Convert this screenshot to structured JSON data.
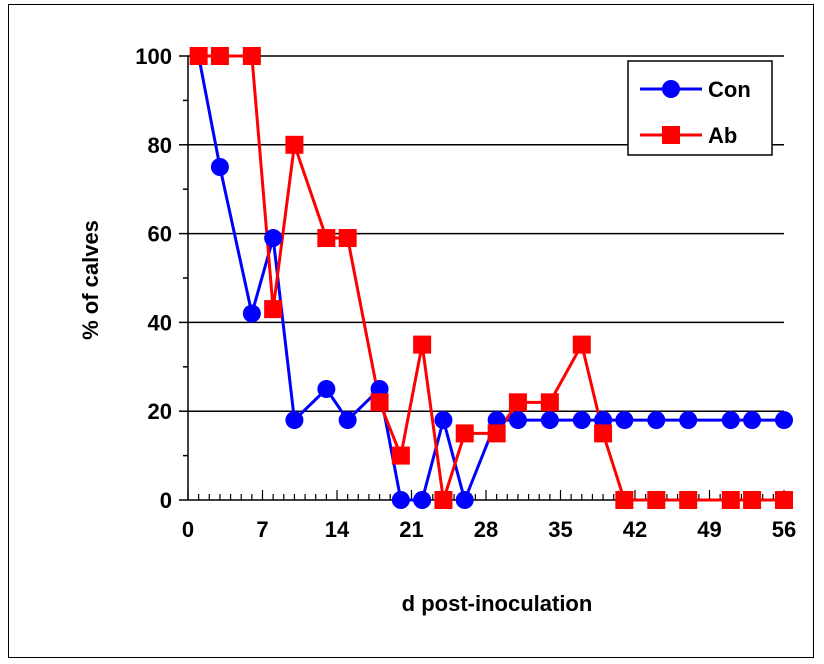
{
  "chart_data": {
    "type": "line",
    "xlabel": "d post-inoculation",
    "ylabel": "% of calves",
    "xlim": [
      0,
      56
    ],
    "ylim": [
      0,
      100
    ],
    "xticks": [
      0,
      7,
      14,
      21,
      28,
      35,
      42,
      49,
      56
    ],
    "yticks": [
      0,
      20,
      40,
      60,
      80,
      100
    ],
    "grid": "horizontal",
    "legend_position": "top-right",
    "series": [
      {
        "name": "Con",
        "color": "#0000FF",
        "marker": "circle",
        "x": [
          1,
          3,
          6,
          8,
          10,
          13,
          15,
          18,
          20,
          22,
          24,
          26,
          29,
          31,
          34,
          37,
          39,
          41,
          44,
          47,
          51,
          53,
          56
        ],
        "y": [
          100,
          75,
          42,
          59,
          18,
          25,
          18,
          25,
          0,
          0,
          18,
          0,
          18,
          18,
          18,
          18,
          18,
          18,
          18,
          18,
          18,
          18,
          18
        ]
      },
      {
        "name": "Ab",
        "color": "#FF0000",
        "marker": "square",
        "x": [
          1,
          3,
          6,
          8,
          10,
          13,
          15,
          18,
          20,
          22,
          24,
          26,
          29,
          31,
          34,
          37,
          39,
          41,
          44,
          47,
          51,
          53,
          56
        ],
        "y": [
          100,
          100,
          100,
          43,
          80,
          59,
          59,
          22,
          10,
          35,
          0,
          15,
          15,
          22,
          22,
          35,
          15,
          0,
          0,
          0,
          0,
          0,
          0
        ]
      }
    ]
  }
}
